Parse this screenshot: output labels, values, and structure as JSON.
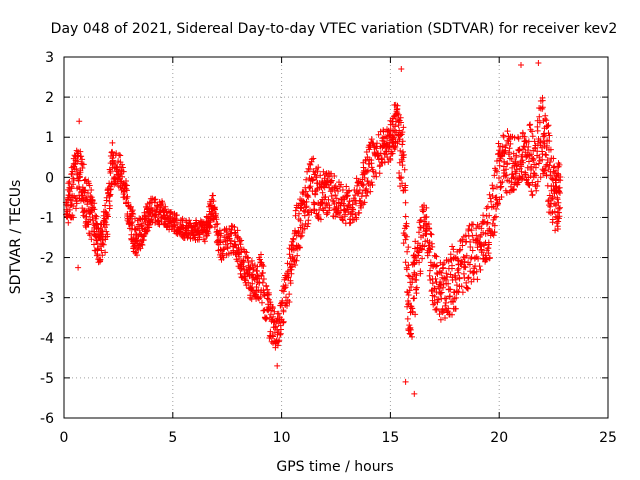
{
  "chart_data": {
    "type": "scatter",
    "title": "Day 048 of 2021, Sidereal Day-to-day VTEC variation (SDTVAR) for receiver kev2",
    "xlabel": "GPS time / hours",
    "ylabel": "SDTVAR / TECUs",
    "xlim": [
      0,
      25
    ],
    "ylim": [
      -6,
      3
    ],
    "xticks": [
      0,
      5,
      10,
      15,
      20,
      25
    ],
    "yticks": [
      -6,
      -5,
      -4,
      -3,
      -2,
      -1,
      0,
      1,
      2,
      3
    ],
    "grid": true,
    "marker": "+",
    "marker_color": "#ff0000",
    "series": [
      {
        "name": "SDTVAR",
        "trend": [
          {
            "x": 0.1,
            "y": -0.8,
            "spread": 0.5
          },
          {
            "x": 0.4,
            "y": -0.3,
            "spread": 0.9
          },
          {
            "x": 0.7,
            "y": 0.2,
            "spread": 0.8
          },
          {
            "x": 1.0,
            "y": -0.6,
            "spread": 0.9
          },
          {
            "x": 1.3,
            "y": -1.0,
            "spread": 0.8
          },
          {
            "x": 1.6,
            "y": -1.7,
            "spread": 0.6
          },
          {
            "x": 1.9,
            "y": -1.3,
            "spread": 0.7
          },
          {
            "x": 2.2,
            "y": 0.4,
            "spread": 0.7
          },
          {
            "x": 2.6,
            "y": 0.1,
            "spread": 0.5
          },
          {
            "x": 3.0,
            "y": -0.9,
            "spread": 0.5
          },
          {
            "x": 3.3,
            "y": -1.6,
            "spread": 0.6
          },
          {
            "x": 3.7,
            "y": -1.2,
            "spread": 0.5
          },
          {
            "x": 4.0,
            "y": -0.8,
            "spread": 0.4
          },
          {
            "x": 4.5,
            "y": -0.9,
            "spread": 0.4
          },
          {
            "x": 5.0,
            "y": -1.1,
            "spread": 0.3
          },
          {
            "x": 5.5,
            "y": -1.3,
            "spread": 0.3
          },
          {
            "x": 6.0,
            "y": -1.3,
            "spread": 0.3
          },
          {
            "x": 6.5,
            "y": -1.4,
            "spread": 0.4
          },
          {
            "x": 6.8,
            "y": -0.7,
            "spread": 0.4
          },
          {
            "x": 7.2,
            "y": -1.7,
            "spread": 0.5
          },
          {
            "x": 7.8,
            "y": -1.5,
            "spread": 0.5
          },
          {
            "x": 8.2,
            "y": -2.1,
            "spread": 0.6
          },
          {
            "x": 8.6,
            "y": -2.6,
            "spread": 0.6
          },
          {
            "x": 9.0,
            "y": -2.4,
            "spread": 0.8
          },
          {
            "x": 9.4,
            "y": -3.4,
            "spread": 0.8
          },
          {
            "x": 9.8,
            "y": -3.9,
            "spread": 0.5
          },
          {
            "x": 10.2,
            "y": -2.9,
            "spread": 0.8
          },
          {
            "x": 10.6,
            "y": -1.6,
            "spread": 0.9
          },
          {
            "x": 11.0,
            "y": -0.8,
            "spread": 0.8
          },
          {
            "x": 11.4,
            "y": -0.2,
            "spread": 0.9
          },
          {
            "x": 11.8,
            "y": -0.5,
            "spread": 0.8
          },
          {
            "x": 12.2,
            "y": -0.4,
            "spread": 0.7
          },
          {
            "x": 12.7,
            "y": -0.6,
            "spread": 0.6
          },
          {
            "x": 13.2,
            "y": -0.8,
            "spread": 0.6
          },
          {
            "x": 13.7,
            "y": -0.3,
            "spread": 0.7
          },
          {
            "x": 14.1,
            "y": 0.3,
            "spread": 0.8
          },
          {
            "x": 14.6,
            "y": 0.7,
            "spread": 0.6
          },
          {
            "x": 15.0,
            "y": 0.9,
            "spread": 0.6
          },
          {
            "x": 15.3,
            "y": 1.4,
            "spread": 0.8
          },
          {
            "x": 15.6,
            "y": -0.2,
            "spread": 1.8
          },
          {
            "x": 15.9,
            "y": -3.5,
            "spread": 1.2
          },
          {
            "x": 16.2,
            "y": -2.2,
            "spread": 1.0
          },
          {
            "x": 16.6,
            "y": -1.0,
            "spread": 0.8
          },
          {
            "x": 17.0,
            "y": -2.6,
            "spread": 0.9
          },
          {
            "x": 17.4,
            "y": -2.9,
            "spread": 0.9
          },
          {
            "x": 17.8,
            "y": -2.6,
            "spread": 1.1
          },
          {
            "x": 18.2,
            "y": -2.4,
            "spread": 1.0
          },
          {
            "x": 18.7,
            "y": -1.9,
            "spread": 1.0
          },
          {
            "x": 19.2,
            "y": -1.7,
            "spread": 0.9
          },
          {
            "x": 19.6,
            "y": -1.2,
            "spread": 1.0
          },
          {
            "x": 20.0,
            "y": 0.2,
            "spread": 1.1
          },
          {
            "x": 20.4,
            "y": 0.4,
            "spread": 1.0
          },
          {
            "x": 20.8,
            "y": 0.3,
            "spread": 0.8
          },
          {
            "x": 21.2,
            "y": 0.6,
            "spread": 0.9
          },
          {
            "x": 21.6,
            "y": 0.4,
            "spread": 1.2
          },
          {
            "x": 22.0,
            "y": 1.2,
            "spread": 1.3
          },
          {
            "x": 22.3,
            "y": 0.1,
            "spread": 1.3
          },
          {
            "x": 22.6,
            "y": -0.6,
            "spread": 1.1
          },
          {
            "x": 22.8,
            "y": -0.3,
            "spread": 0.9
          }
        ],
        "extremes": [
          {
            "x": 15.5,
            "y": 2.7
          },
          {
            "x": 16.1,
            "y": -5.4
          },
          {
            "x": 21.8,
            "y": 2.85
          },
          {
            "x": 21.0,
            "y": 2.8
          },
          {
            "x": 9.8,
            "y": -4.7
          },
          {
            "x": 0.7,
            "y": 1.4
          },
          {
            "x": 0.65,
            "y": -2.25
          },
          {
            "x": 15.7,
            "y": -5.1
          }
        ]
      }
    ]
  }
}
